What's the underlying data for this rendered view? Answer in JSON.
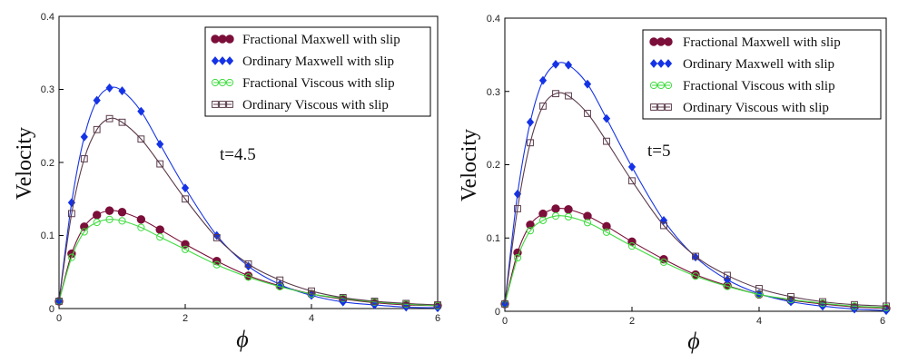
{
  "chart_data": [
    {
      "type": "line",
      "annotation": "t=4.5",
      "xlabel": "ϕ",
      "ylabel": "Velocity",
      "xlim": [
        0,
        6
      ],
      "ylim": [
        0,
        0.4
      ],
      "x_ticks": [
        "0",
        "2",
        "4",
        "6"
      ],
      "y_ticks": [
        "0",
        "0.1",
        "0.2",
        "0.3",
        "0.4"
      ],
      "legend_position": "top-right",
      "series": [
        {
          "name": "Fractional Maxwell with slip",
          "color": "#7b0f3a",
          "marker": "filled-circle",
          "x": [
            0,
            0.2,
            0.4,
            0.6,
            0.8,
            1.0,
            1.3,
            1.6,
            2.0,
            2.5,
            3.0,
            3.5,
            4.0,
            4.5,
            5.0,
            5.5,
            6.0
          ],
          "y": [
            0.01,
            0.075,
            0.112,
            0.128,
            0.134,
            0.132,
            0.122,
            0.108,
            0.088,
            0.065,
            0.045,
            0.031,
            0.02,
            0.013,
            0.008,
            0.005,
            0.004
          ]
        },
        {
          "name": "Ordinary Maxwell with slip",
          "color": "#1533e6",
          "marker": "filled-diamond",
          "x": [
            0,
            0.2,
            0.4,
            0.6,
            0.8,
            1.0,
            1.3,
            1.6,
            2.0,
            2.5,
            3.0,
            3.5,
            4.0,
            4.5,
            5.0,
            5.5,
            6.0
          ],
          "y": [
            0.01,
            0.145,
            0.235,
            0.285,
            0.302,
            0.298,
            0.27,
            0.225,
            0.165,
            0.1,
            0.058,
            0.033,
            0.018,
            0.009,
            0.005,
            0.002,
            0.001
          ]
        },
        {
          "name": "Fractional Viscous with slip",
          "color": "#3fdc3f",
          "marker": "open-circle",
          "x": [
            0,
            0.2,
            0.4,
            0.6,
            0.8,
            1.0,
            1.3,
            1.6,
            2.0,
            2.5,
            3.0,
            3.5,
            4.0,
            4.5,
            5.0,
            5.5,
            6.0
          ],
          "y": [
            0.01,
            0.07,
            0.105,
            0.118,
            0.122,
            0.12,
            0.111,
            0.098,
            0.081,
            0.06,
            0.043,
            0.03,
            0.02,
            0.014,
            0.009,
            0.006,
            0.004
          ]
        },
        {
          "name": "Ordinary Viscous with slip",
          "color": "#5a3a4a",
          "marker": "open-square",
          "x": [
            0,
            0.2,
            0.4,
            0.6,
            0.8,
            1.0,
            1.3,
            1.6,
            2.0,
            2.5,
            3.0,
            3.5,
            4.0,
            4.5,
            5.0,
            5.5,
            6.0
          ],
          "y": [
            0.01,
            0.13,
            0.205,
            0.245,
            0.26,
            0.255,
            0.232,
            0.198,
            0.15,
            0.097,
            0.061,
            0.039,
            0.024,
            0.015,
            0.01,
            0.007,
            0.005
          ]
        }
      ]
    },
    {
      "type": "line",
      "annotation": "t=5",
      "xlabel": "ϕ",
      "ylabel": "Velocity",
      "xlim": [
        0,
        6
      ],
      "ylim": [
        0,
        0.4
      ],
      "x_ticks": [
        "0",
        "2",
        "4",
        "6"
      ],
      "y_ticks": [
        "0",
        "0.1",
        "0.2",
        "0.3",
        "0.4"
      ],
      "legend_position": "top-right",
      "series": [
        {
          "name": "Fractional Maxwell with slip",
          "color": "#7b0f3a",
          "marker": "filled-circle",
          "x": [
            0,
            0.2,
            0.4,
            0.6,
            0.8,
            1.0,
            1.3,
            1.6,
            2.0,
            2.5,
            3.0,
            3.5,
            4.0,
            4.5,
            5.0,
            5.5,
            6.0
          ],
          "y": [
            0.01,
            0.08,
            0.118,
            0.133,
            0.14,
            0.139,
            0.13,
            0.116,
            0.095,
            0.071,
            0.05,
            0.035,
            0.023,
            0.015,
            0.01,
            0.006,
            0.004
          ]
        },
        {
          "name": "Ordinary Maxwell with slip",
          "color": "#1533e6",
          "marker": "filled-diamond",
          "x": [
            0,
            0.2,
            0.4,
            0.6,
            0.8,
            1.0,
            1.3,
            1.6,
            2.0,
            2.5,
            3.0,
            3.5,
            4.0,
            4.5,
            5.0,
            5.5,
            6.0
          ],
          "y": [
            0.01,
            0.16,
            0.258,
            0.315,
            0.337,
            0.336,
            0.31,
            0.263,
            0.197,
            0.124,
            0.074,
            0.043,
            0.024,
            0.013,
            0.007,
            0.003,
            0.001
          ]
        },
        {
          "name": "Fractional Viscous with slip",
          "color": "#3fdc3f",
          "marker": "open-circle",
          "x": [
            0,
            0.2,
            0.4,
            0.6,
            0.8,
            1.0,
            1.3,
            1.6,
            2.0,
            2.5,
            3.0,
            3.5,
            4.0,
            4.5,
            5.0,
            5.5,
            6.0
          ],
          "y": [
            0.01,
            0.073,
            0.11,
            0.124,
            0.13,
            0.129,
            0.121,
            0.108,
            0.089,
            0.067,
            0.048,
            0.034,
            0.023,
            0.016,
            0.011,
            0.007,
            0.005
          ]
        },
        {
          "name": "Ordinary Viscous with slip",
          "color": "#5a3a4a",
          "marker": "open-square",
          "x": [
            0,
            0.2,
            0.4,
            0.6,
            0.8,
            1.0,
            1.3,
            1.6,
            2.0,
            2.5,
            3.0,
            3.5,
            4.0,
            4.5,
            5.0,
            5.5,
            6.0
          ],
          "y": [
            0.01,
            0.14,
            0.23,
            0.28,
            0.297,
            0.294,
            0.27,
            0.232,
            0.178,
            0.117,
            0.075,
            0.049,
            0.031,
            0.02,
            0.013,
            0.009,
            0.007
          ]
        }
      ]
    }
  ]
}
